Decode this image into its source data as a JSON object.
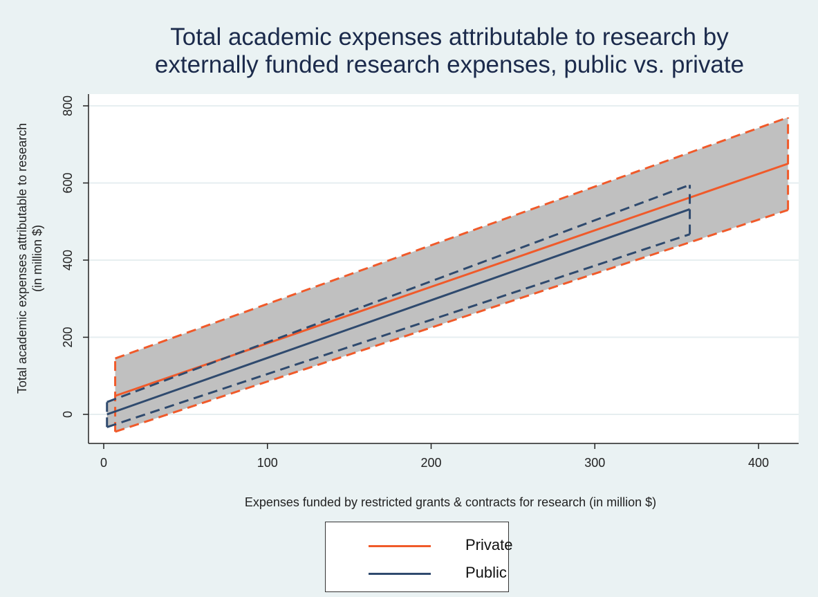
{
  "chart_data": {
    "type": "line",
    "title_lines": [
      "Total academic expenses attributable to research by",
      "externally funded research expenses, public vs. private"
    ],
    "xlabel": "Expenses funded by restricted grants & contracts for research (in million $)",
    "ylabel_lines": [
      "Total academic expenses attributable to research",
      "(in million $)"
    ],
    "xlim": [
      0,
      420
    ],
    "ylim": [
      -50,
      830
    ],
    "xticks": [
      0,
      100,
      200,
      300,
      400
    ],
    "yticks": [
      0,
      200,
      400,
      600,
      800
    ],
    "grid": true,
    "legend_placement": "bottom",
    "series": [
      {
        "name": "Private",
        "color": "#f05a2a",
        "x": [
          7,
          418
        ],
        "fit": [
          48,
          650
        ],
        "ci_upper": [
          145,
          770
        ],
        "ci_lower": [
          -45,
          530
        ]
      },
      {
        "name": "Public",
        "color": "#2f4a6e",
        "x": [
          2,
          358
        ],
        "fit": [
          0,
          532
        ],
        "ci_upper": [
          32,
          595
        ],
        "ci_lower": [
          -33,
          467
        ]
      }
    ],
    "ci_fill_color": "#c0c0c0"
  }
}
